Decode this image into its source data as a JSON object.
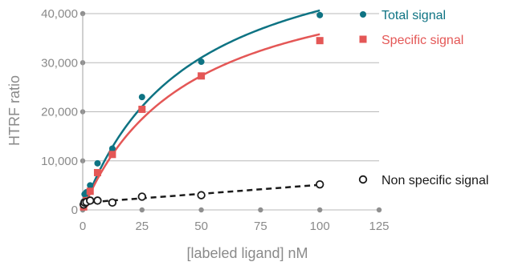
{
  "chart_data": {
    "type": "scatter",
    "title": "",
    "xlabel": "[labeled ligand] nM",
    "ylabel": "HTRF ratio",
    "xlim": [
      0,
      125
    ],
    "ylim": [
      0,
      40000
    ],
    "xticks": [
      0,
      25,
      50,
      75,
      100,
      125
    ],
    "xtick_labels": [
      "0",
      "25",
      "50",
      "75",
      "100",
      "125"
    ],
    "yticks": [
      0,
      10000,
      20000,
      30000,
      40000
    ],
    "ytick_labels": [
      "0",
      "10,000",
      "20,000",
      "30,000",
      "40,000"
    ],
    "grid": "horizontal",
    "legend": "right, next to each series",
    "series": [
      {
        "name": "Total signal",
        "marker": "circle-filled",
        "color": "#0e7383",
        "line": "fitted curve",
        "x": [
          0.39,
          0.78,
          1.56,
          3.13,
          6.25,
          12.5,
          25,
          50,
          100
        ],
        "y": [
          1700,
          3200,
          3600,
          5000,
          9500,
          12500,
          23000,
          30200,
          39700
        ]
      },
      {
        "name": "Specific signal",
        "marker": "square-filled",
        "color": "#e45756",
        "line": "fitted curve",
        "x": [
          0.39,
          0.78,
          1.56,
          3.13,
          6.25,
          12.5,
          25,
          50,
          100
        ],
        "y": [
          600,
          1400,
          1900,
          3800,
          7600,
          11300,
          20500,
          27300,
          34500
        ]
      },
      {
        "name": "Non specific signal",
        "marker": "circle-open",
        "color": "#1a1a1a",
        "line": "dashed linear fit",
        "x": [
          0.39,
          0.78,
          1.56,
          3.13,
          6.25,
          12.5,
          25,
          50,
          100
        ],
        "y": [
          1100,
          1500,
          1600,
          1900,
          1900,
          1500,
          2700,
          3000,
          5200
        ]
      }
    ]
  }
}
